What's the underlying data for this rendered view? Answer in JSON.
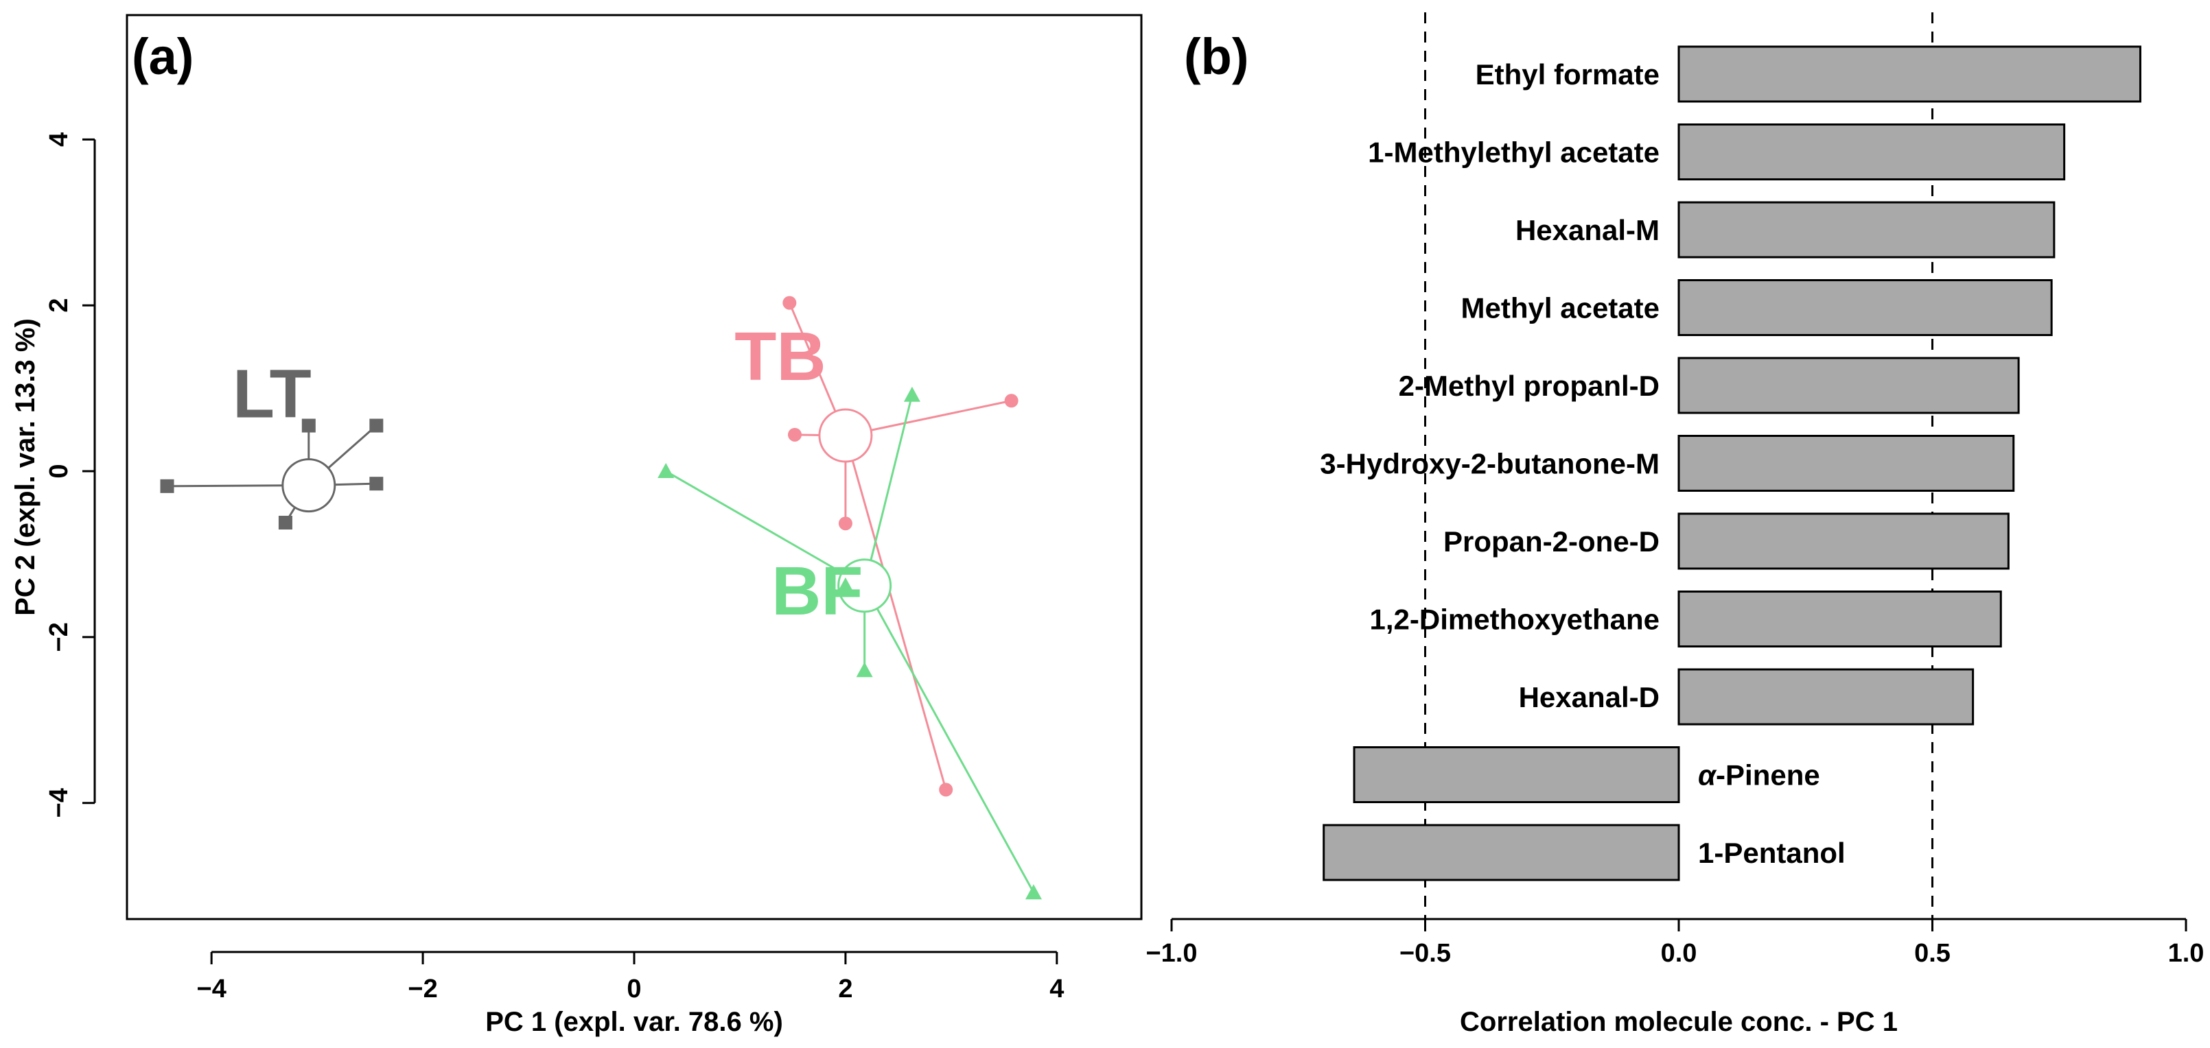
{
  "figure": {
    "panel_a_label": "(a)",
    "panel_b_label": "(b)"
  },
  "chart_data": [
    {
      "type": "scatter",
      "panel": "(a)",
      "xlabel": "PC 1 (expl. var. 78.6 %)",
      "ylabel": "PC 2 (expl. var. 13.3 %)",
      "xlim": [
        -4.8,
        4.8
      ],
      "ylim": [
        -5.4,
        5.5
      ],
      "xticks": [
        -4,
        -2,
        0,
        2,
        4
      ],
      "yticks": [
        -4,
        -2,
        0,
        2,
        4
      ],
      "xtick_labels": [
        "−4",
        "−2",
        "0",
        "2",
        "4"
      ],
      "ytick_labels": [
        "−4",
        "−2",
        "0",
        "2",
        "4"
      ],
      "grid": false,
      "groups": [
        {
          "name": "LT",
          "color": "#666666",
          "marker": "square",
          "centroid": [
            -3.08,
            -0.17
          ],
          "label_pos": [
            -3.8,
            0.65
          ],
          "points": [
            [
              -4.42,
              -0.18
            ],
            [
              -3.3,
              -0.62
            ],
            [
              -3.08,
              0.55
            ],
            [
              -2.44,
              0.55
            ],
            [
              -2.44,
              -0.15
            ]
          ]
        },
        {
          "name": "TB",
          "color": "#f48c99",
          "marker": "circle",
          "centroid": [
            2.0,
            0.43
          ],
          "label_pos": [
            0.95,
            1.1
          ],
          "points": [
            [
              1.47,
              2.03
            ],
            [
              1.52,
              0.44
            ],
            [
              2.0,
              -0.63
            ],
            [
              3.57,
              0.85
            ],
            [
              2.95,
              -3.84
            ]
          ]
        },
        {
          "name": "BF",
          "color": "#6fdc8c",
          "marker": "triangle",
          "centroid": [
            2.18,
            -1.38
          ],
          "label_pos": [
            1.3,
            -1.73
          ],
          "points": [
            [
              0.3,
              0.0
            ],
            [
              2.0,
              -1.38
            ],
            [
              2.18,
              -2.4
            ],
            [
              2.63,
              0.92
            ],
            [
              3.78,
              -5.08
            ]
          ]
        }
      ]
    },
    {
      "type": "bar",
      "orientation": "horizontal",
      "panel": "(b)",
      "xlabel": "Correlation molecule conc. - PC 1",
      "xlim": [
        -1.0,
        1.0
      ],
      "xticks": [
        -1.0,
        -0.5,
        0.0,
        0.5,
        1.0
      ],
      "xtick_labels": [
        "−1.0",
        "−0.5",
        "0.0",
        "0.5",
        "1.0"
      ],
      "reference_lines": [
        -0.5,
        0.5
      ],
      "bar_color": "#a9a9a9",
      "categories": [
        "Ethyl formate",
        "1-Methylethyl acetate",
        "Hexanal-M",
        "Methyl acetate",
        "2-Methyl propanl-D",
        "3-Hydroxy-2-butanone-M",
        "Propan-2-one-D",
        "1,2-Dimethoxyethane",
        "Hexanal-D",
        "α-Pinene",
        "1-Pentanol"
      ],
      "values": [
        0.91,
        0.76,
        0.74,
        0.735,
        0.67,
        0.66,
        0.65,
        0.635,
        0.58,
        -0.64,
        -0.7
      ]
    }
  ]
}
